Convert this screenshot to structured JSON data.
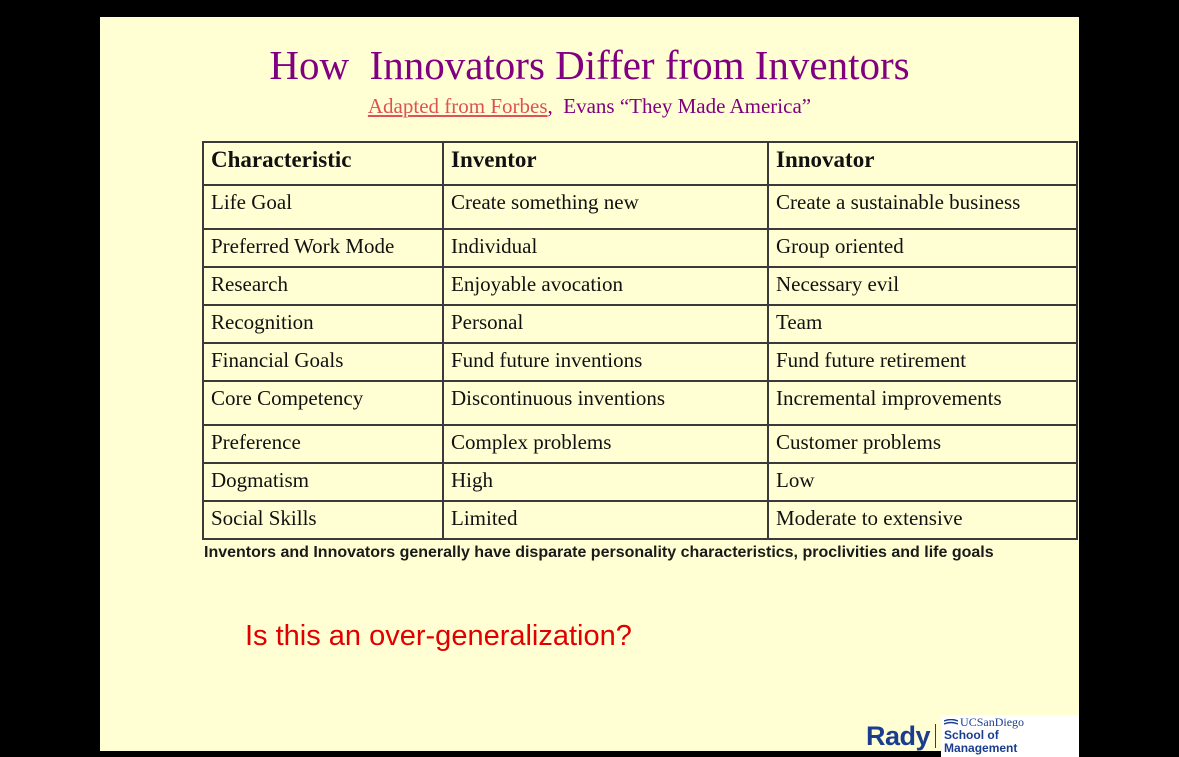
{
  "slide": {
    "title": "How  Innovators Differ from Inventors",
    "subtitle_link": "Adapted from Forbes",
    "subtitle_rest": ",  Evans “They Made America”",
    "table": {
      "headers": [
        "Characteristic",
        "Inventor",
        "Innovator"
      ],
      "rows": [
        [
          "Life Goal",
          "Create something new",
          "Create a sustainable business"
        ],
        [
          "Preferred Work Mode",
          "Individual",
          "Group oriented"
        ],
        [
          "Research",
          "Enjoyable avocation",
          "Necessary evil"
        ],
        [
          "Recognition",
          "Personal",
          "Team"
        ],
        [
          "Financial Goals",
          "Fund future inventions",
          "Fund future retirement"
        ],
        [
          "Core Competency",
          "Discontinuous inventions",
          "Incremental improvements"
        ],
        [
          "Preference",
          "Complex problems",
          "Customer problems"
        ],
        [
          "Dogmatism",
          "High",
          "Low"
        ],
        [
          "Social Skills",
          "Limited",
          "Moderate to extensive"
        ]
      ]
    },
    "caption": "Inventors and Innovators generally have disparate personality characteristics, proclivities and life goals",
    "question": "Is this an over-generalization?",
    "logo": {
      "rady": "Rady",
      "ucsd": "UCSanDiego",
      "school": "School of Management"
    }
  }
}
